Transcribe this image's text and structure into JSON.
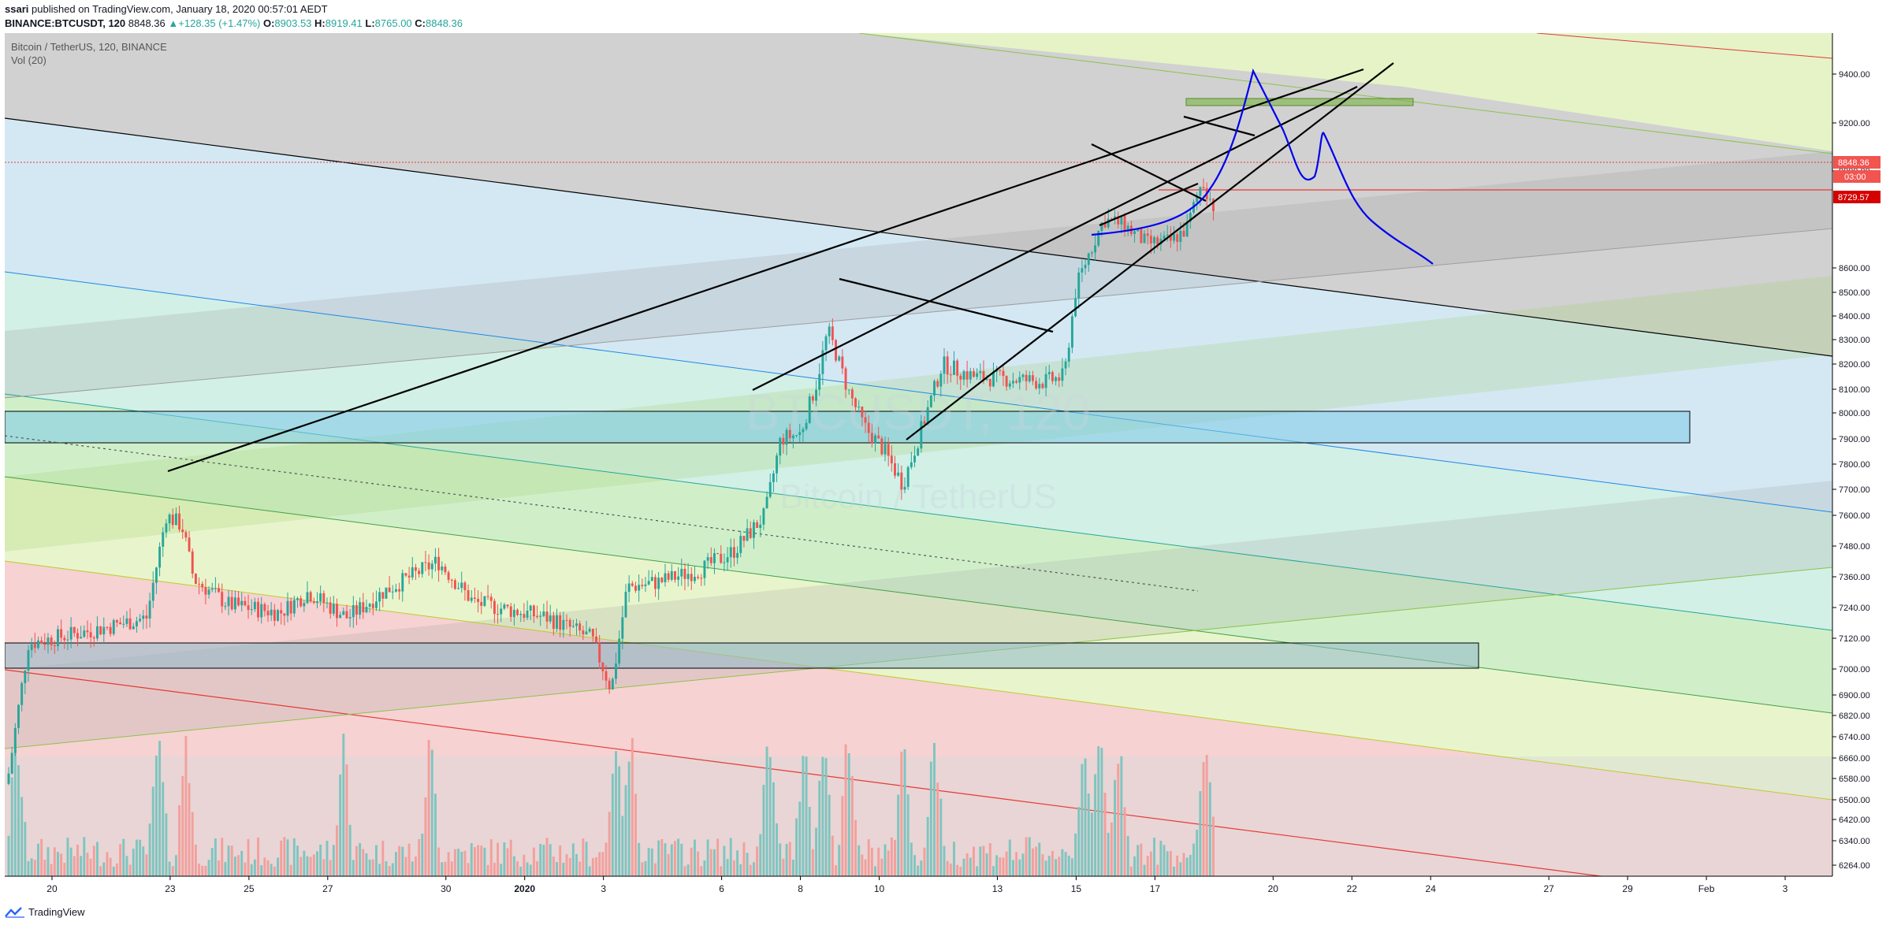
{
  "header": {
    "author": "ssari",
    "published_text": "published on TradingView.com, January 18, 2020 00:57:01 AEDT",
    "symbol": "BINANCE:BTCUSDT, 120",
    "last_price": "8848.36",
    "change_arrow": "▲",
    "change": "+128.35 (+1.47%)",
    "open_label": "O:",
    "open": "8903.53",
    "high_label": "H:",
    "high": "8919.41",
    "low_label": "L:",
    "low": "8765.00",
    "close_label": "C:",
    "close": "8848.36"
  },
  "legend": {
    "title": "Bitcoin / TetherUS, 120, BINANCE",
    "volume": "Vol (20)"
  },
  "watermark": {
    "line1": "BTCUSDT, 120",
    "line2": "Bitcoin / TetherUS"
  },
  "footer": {
    "brand": "TradingView"
  },
  "colors": {
    "up": "#26a69a",
    "down": "#ef5350",
    "vol_up": "#7fc5c0",
    "vol_down": "#f2a09d",
    "price_line": "#e53935",
    "drawing": "#000000",
    "projection": "#0000ee"
  },
  "price_labels": {
    "last": "8848.36",
    "countdown": "03:00",
    "alert": "8729.57"
  },
  "chart_data": {
    "type": "candlestick",
    "symbol": "BTCUSDT",
    "interval": "120",
    "ylim": [
      6200,
      9450
    ],
    "y_ticks": [
      6264,
      6340,
      6420,
      6500,
      6580,
      6660,
      6740,
      6820,
      6900,
      7000,
      7120,
      7240,
      7360,
      7480,
      7600,
      7700,
      7800,
      7900,
      8000,
      8100,
      8200,
      8300,
      8400,
      8500,
      8600,
      9000,
      9200,
      9400
    ],
    "y_tick_labels": [
      "6264.00",
      "6340.00",
      "6420.00",
      "6500.00",
      "6580.00",
      "6660.00",
      "6740.00",
      "6820.00",
      "6900.00",
      "7000.00",
      "7120.00",
      "7240.00",
      "7360.00",
      "7480.00",
      "7600.00",
      "7700.00",
      "7800.00",
      "7900.00",
      "8000.00",
      "8100.00",
      "8200.00",
      "8300.00",
      "8400.00",
      "8500.00",
      "8600.00",
      "9000.00",
      "9200.00",
      "9400.00"
    ],
    "x_ticks": [
      "20",
      "23",
      "25",
      "27",
      "30",
      "2020",
      "3",
      "6",
      "8",
      "10",
      "13",
      "15",
      "17",
      "20",
      "22",
      "24",
      "27",
      "29",
      "Feb",
      "3"
    ],
    "x_tick_days": [
      -12,
      -9,
      -7,
      -5,
      -2,
      0,
      2,
      5,
      7,
      9,
      12,
      14,
      16,
      19,
      21,
      23,
      26,
      28,
      30,
      32
    ],
    "x_range_days": [
      -13.2,
      33.2
    ],
    "last_price": 8848.36,
    "alert_level": 8729.57,
    "anchors": [
      {
        "day": -13.1,
        "close": 6600,
        "high": 6700
      },
      {
        "day": -12.6,
        "close": 7100,
        "high": 7300
      },
      {
        "day": -11,
        "close": 7150,
        "high": 7240
      },
      {
        "day": -9.6,
        "close": 7200,
        "high": 7260
      },
      {
        "day": -9.1,
        "close": 7600,
        "high": 7650
      },
      {
        "day": -8.7,
        "close": 7560,
        "high": 7690
      },
      {
        "day": -8.4,
        "close": 7350,
        "high": 7400
      },
      {
        "day": -7.5,
        "close": 7250,
        "high": 7380
      },
      {
        "day": -6.2,
        "close": 7220,
        "high": 7280
      },
      {
        "day": -5.5,
        "close": 7300,
        "high": 7420
      },
      {
        "day": -4.5,
        "close": 7200,
        "high": 7280
      },
      {
        "day": -3.6,
        "close": 7300,
        "high": 7360
      },
      {
        "day": -2.2,
        "close": 7420,
        "high": 7520
      },
      {
        "day": -1.3,
        "close": 7260,
        "high": 7310
      },
      {
        "day": 0.6,
        "close": 7200,
        "high": 7280
      },
      {
        "day": 1.7,
        "close": 7120,
        "high": 7200
      },
      {
        "day": 2.2,
        "close": 6920,
        "high": 7000
      },
      {
        "day": 2.6,
        "close": 7320,
        "high": 7350
      },
      {
        "day": 3.4,
        "close": 7340,
        "high": 7420
      },
      {
        "day": 4.5,
        "close": 7390,
        "high": 7460
      },
      {
        "day": 5.3,
        "close": 7460,
        "high": 7540
      },
      {
        "day": 6.1,
        "close": 7600,
        "high": 7650
      },
      {
        "day": 6.5,
        "close": 7900,
        "high": 8000
      },
      {
        "day": 7.0,
        "close": 7920,
        "high": 7950
      },
      {
        "day": 7.4,
        "close": 8120,
        "high": 8200
      },
      {
        "day": 7.7,
        "close": 8340,
        "high": 8450
      },
      {
        "day": 8.2,
        "close": 8100,
        "high": 8360
      },
      {
        "day": 8.6,
        "close": 7950,
        "high": 8050
      },
      {
        "day": 9.1,
        "close": 7860,
        "high": 7950
      },
      {
        "day": 9.6,
        "close": 7720,
        "high": 7800
      },
      {
        "day": 10.1,
        "close": 7950,
        "high": 8020
      },
      {
        "day": 10.6,
        "close": 8200,
        "high": 8250
      },
      {
        "day": 11.4,
        "close": 8150,
        "high": 8280
      },
      {
        "day": 12.3,
        "close": 8140,
        "high": 8220
      },
      {
        "day": 13.2,
        "close": 8130,
        "high": 8180
      },
      {
        "day": 13.7,
        "close": 8150,
        "high": 8200
      },
      {
        "day": 14.0,
        "close": 8520,
        "high": 8560
      },
      {
        "day": 14.3,
        "close": 8650,
        "high": 8700
      },
      {
        "day": 14.7,
        "close": 8800,
        "high": 8880
      },
      {
        "day": 15.2,
        "close": 8780,
        "high": 8900
      },
      {
        "day": 15.8,
        "close": 8700,
        "high": 8830
      },
      {
        "day": 16.4,
        "close": 8710,
        "high": 8780
      },
      {
        "day": 16.8,
        "close": 8760,
        "high": 8820
      },
      {
        "day": 17.2,
        "close": 8960,
        "high": 9040
      },
      {
        "day": 17.5,
        "close": 8848,
        "high": 8919
      }
    ],
    "volume_spikes_days": [
      -12.9,
      -9.3,
      -8.6,
      -4.6,
      -2.4,
      2.3,
      2.7,
      6.2,
      7.1,
      7.6,
      8.2,
      9.6,
      10.4,
      14.2,
      14.6,
      15.1,
      17.3
    ]
  }
}
